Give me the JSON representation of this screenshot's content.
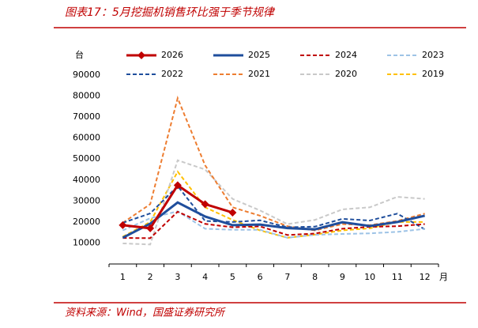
{
  "chart_data": {
    "type": "line",
    "title": "图表17：5月挖掘机销售环比强于季节规律",
    "source": "资料来源：Wind，国盛证券研究所",
    "y_unit": "台",
    "x_unit": "月",
    "categories": [
      "1",
      "2",
      "3",
      "4",
      "5",
      "6",
      "7",
      "8",
      "9",
      "10",
      "11",
      "12"
    ],
    "ylim": [
      0,
      90000
    ],
    "yticks": [
      10000,
      20000,
      30000,
      40000,
      50000,
      60000,
      70000,
      80000,
      90000
    ],
    "series": [
      {
        "name": "2026",
        "color": "#c00000",
        "dashed": false,
        "marker": true,
        "width": 3,
        "values": [
          18500,
          17000,
          37500,
          28500,
          24500,
          null,
          null,
          null,
          null,
          null,
          null,
          null
        ]
      },
      {
        "name": "2025",
        "color": "#1f4e9c",
        "dashed": false,
        "marker": false,
        "width": 3,
        "values": [
          12500,
          19200,
          29300,
          22600,
          18500,
          18800,
          17100,
          16500,
          19900,
          18100,
          20000,
          23000
        ]
      },
      {
        "name": "2024",
        "color": "#c00000",
        "dashed": true,
        "marker": false,
        "width": 2,
        "values": [
          12400,
          12300,
          24900,
          19100,
          17500,
          17900,
          13800,
          14500,
          16800,
          17700,
          18000,
          19000
        ]
      },
      {
        "name": "2023",
        "color": "#9dc3e6",
        "dashed": true,
        "marker": false,
        "width": 2,
        "values": [
          16000,
          21800,
          25100,
          16800,
          16300,
          16300,
          12500,
          13900,
          14300,
          14600,
          15300,
          16700
        ]
      },
      {
        "name": "2022",
        "color": "#1f4e9c",
        "dashed": true,
        "marker": false,
        "width": 2,
        "values": [
          19600,
          24100,
          37100,
          20500,
          20000,
          20800,
          17500,
          17800,
          21500,
          20700,
          24000,
          16500
        ]
      },
      {
        "name": "2021",
        "color": "#ed7d31",
        "dashed": true,
        "marker": false,
        "width": 2,
        "values": [
          19600,
          28500,
          79000,
          47000,
          27000,
          23000,
          18000,
          16000,
          19000,
          18500,
          20500,
          24000
        ]
      },
      {
        "name": "2020",
        "color": "#c9c9c9",
        "dashed": true,
        "marker": false,
        "width": 2,
        "values": [
          9800,
          9300,
          49400,
          45000,
          31000,
          25500,
          19000,
          21000,
          26000,
          27000,
          32000,
          31000
        ]
      },
      {
        "name": "2019",
        "color": "#ffc000",
        "dashed": true,
        "marker": false,
        "width": 2,
        "values": [
          13000,
          20000,
          44000,
          27000,
          21000,
          16000,
          12500,
          14000,
          16000,
          17000,
          20000,
          20000
        ]
      }
    ]
  }
}
